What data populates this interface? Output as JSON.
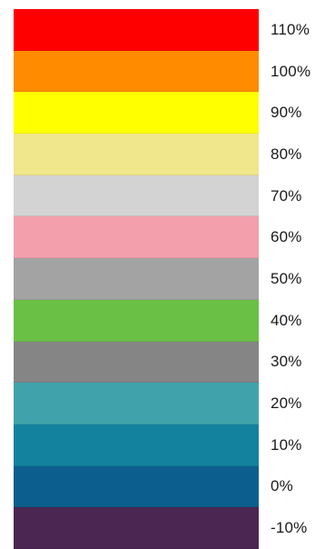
{
  "legend": {
    "items": [
      {
        "label": "110%",
        "color": "#ff0000"
      },
      {
        "label": "100%",
        "color": "#ff8c00"
      },
      {
        "label": "90%",
        "color": "#ffff00"
      },
      {
        "label": "80%",
        "color": "#f0e68c"
      },
      {
        "label": "70%",
        "color": "#d3d3d3"
      },
      {
        "label": "60%",
        "color": "#f4a0ac"
      },
      {
        "label": "50%",
        "color": "#a3a3a3"
      },
      {
        "label": "40%",
        "color": "#6abf45"
      },
      {
        "label": "30%",
        "color": "#858585"
      },
      {
        "label": "20%",
        "color": "#40a3ab"
      },
      {
        "label": "10%",
        "color": "#13829e"
      },
      {
        "label": "0%",
        "color": "#0b5e8d"
      },
      {
        "label": "-10%",
        "color": "#4b2652"
      }
    ]
  }
}
